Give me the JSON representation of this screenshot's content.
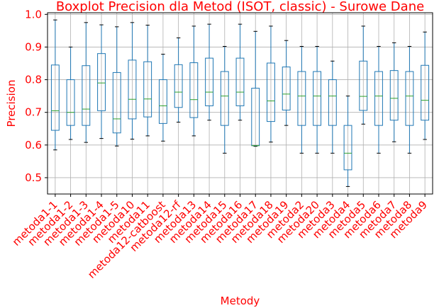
{
  "chart_data": {
    "type": "boxplot",
    "title": "Boxplot Precision dla Metod (ISOT, classic) - Surowe Dane",
    "xlabel": "Metody",
    "ylabel": "Precision",
    "ylim": [
      0.45,
      1.005
    ],
    "yticks": [
      0.5,
      0.6,
      0.7,
      0.8,
      0.9,
      1.0
    ],
    "ytick_labels": [
      "0.5",
      "0.6",
      "0.7",
      "0.8",
      "0.9",
      "1.0"
    ],
    "grid": true,
    "categories": [
      "metoda1-1",
      "metoda1-2",
      "metoda1-3",
      "metoda1-4",
      "metoda1-5",
      "metoda10",
      "metoda11",
      "metoda12-catboost",
      "metoda12-rf",
      "metoda13",
      "metoda14",
      "metoda15",
      "metoda16",
      "metoda17",
      "metoda18",
      "metoda19",
      "metoda2",
      "metoda20",
      "metoda3",
      "metoda4",
      "metoda5",
      "metoda6",
      "metoda7",
      "metoda8",
      "metoda9"
    ],
    "boxes": [
      {
        "whislo": 0.585,
        "q1": 0.645,
        "med": 0.705,
        "q3": 0.845,
        "whishi": 0.983
      },
      {
        "whislo": 0.617,
        "q1": 0.66,
        "med": 0.7,
        "q3": 0.8,
        "whishi": 0.9
      },
      {
        "whislo": 0.608,
        "q1": 0.66,
        "med": 0.71,
        "q3": 0.843,
        "whishi": 0.975
      },
      {
        "whislo": 0.62,
        "q1": 0.705,
        "med": 0.79,
        "q3": 0.88,
        "whishi": 0.968
      },
      {
        "whislo": 0.597,
        "q1": 0.637,
        "med": 0.68,
        "q3": 0.822,
        "whishi": 0.962
      },
      {
        "whislo": 0.618,
        "q1": 0.68,
        "med": 0.74,
        "q3": 0.86,
        "whishi": 0.975
      },
      {
        "whislo": 0.628,
        "q1": 0.686,
        "med": 0.741,
        "q3": 0.855,
        "whishi": 0.967
      },
      {
        "whislo": 0.612,
        "q1": 0.666,
        "med": 0.72,
        "q3": 0.8,
        "whishi": 0.878
      },
      {
        "whislo": 0.67,
        "q1": 0.715,
        "med": 0.762,
        "q3": 0.846,
        "whishi": 0.928
      },
      {
        "whislo": 0.628,
        "q1": 0.684,
        "med": 0.739,
        "q3": 0.852,
        "whishi": 0.964
      },
      {
        "whislo": 0.676,
        "q1": 0.72,
        "med": 0.762,
        "q3": 0.866,
        "whishi": 0.97
      },
      {
        "whislo": 0.575,
        "q1": 0.66,
        "med": 0.75,
        "q3": 0.825,
        "whishi": 0.902
      },
      {
        "whislo": 0.676,
        "q1": 0.72,
        "med": 0.762,
        "q3": 0.866,
        "whishi": 0.97
      },
      {
        "whislo": 0.596,
        "q1": 0.598,
        "med": 0.598,
        "q3": 0.774,
        "whishi": 0.948
      },
      {
        "whislo": 0.609,
        "q1": 0.672,
        "med": 0.735,
        "q3": 0.851,
        "whishi": 0.964
      },
      {
        "whislo": 0.66,
        "q1": 0.707,
        "med": 0.756,
        "q3": 0.839,
        "whishi": 0.92
      },
      {
        "whislo": 0.575,
        "q1": 0.66,
        "med": 0.75,
        "q3": 0.825,
        "whishi": 0.902
      },
      {
        "whislo": 0.575,
        "q1": 0.66,
        "med": 0.75,
        "q3": 0.825,
        "whishi": 0.902
      },
      {
        "whislo": 0.575,
        "q1": 0.66,
        "med": 0.75,
        "q3": 0.8,
        "whishi": 0.857
      },
      {
        "whislo": 0.473,
        "q1": 0.524,
        "med": 0.575,
        "q3": 0.66,
        "whishi": 0.75
      },
      {
        "whislo": 0.664,
        "q1": 0.706,
        "med": 0.749,
        "q3": 0.857,
        "whishi": 0.964
      },
      {
        "whislo": 0.575,
        "q1": 0.66,
        "med": 0.75,
        "q3": 0.825,
        "whishi": 0.902
      },
      {
        "whislo": 0.61,
        "q1": 0.676,
        "med": 0.743,
        "q3": 0.828,
        "whishi": 0.913
      },
      {
        "whislo": 0.575,
        "q1": 0.66,
        "med": 0.75,
        "q3": 0.825,
        "whishi": 0.902
      },
      {
        "whislo": 0.617,
        "q1": 0.676,
        "med": 0.737,
        "q3": 0.844,
        "whishi": 0.946
      }
    ],
    "colors": {
      "text": "#ff0000",
      "box": "#1f77b4",
      "median": "#2ca02c",
      "grid": "#b0b0b0",
      "axis": "#000000"
    }
  }
}
